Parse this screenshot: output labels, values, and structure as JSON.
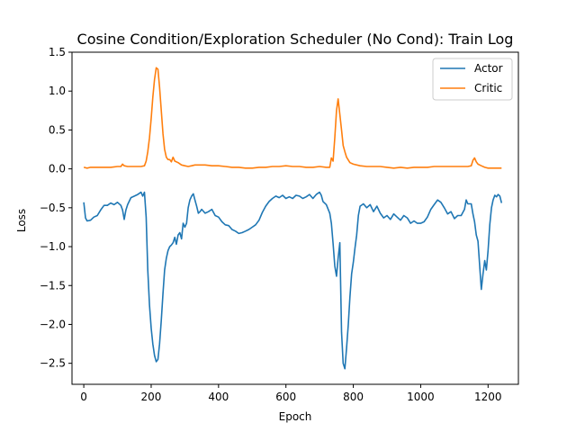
{
  "chart_data": {
    "type": "line",
    "title": "Cosine Condition/Exploration Scheduler (No Cond): Train Log",
    "xlabel": "Epoch",
    "ylabel": "Loss",
    "xlim": [
      -35,
      1290
    ],
    "ylim": [
      -2.77,
      1.5
    ],
    "xticks": [
      0,
      200,
      400,
      600,
      800,
      1000,
      1200
    ],
    "yticks": [
      -2.5,
      -2.0,
      -1.5,
      -1.0,
      -0.5,
      0.0,
      0.5,
      1.0,
      1.5
    ],
    "ytick_labels": [
      "−2.5",
      "−2.0",
      "−1.5",
      "−1.0",
      "−0.5",
      "0.0",
      "0.5",
      "1.0",
      "1.5"
    ],
    "grid": false,
    "legend_position": "top-right",
    "series": [
      {
        "name": "Actor",
        "color": "#1f77b4",
        "points": [
          [
            0,
            -0.43
          ],
          [
            5,
            -0.63
          ],
          [
            10,
            -0.67
          ],
          [
            20,
            -0.66
          ],
          [
            30,
            -0.62
          ],
          [
            40,
            -0.6
          ],
          [
            50,
            -0.53
          ],
          [
            60,
            -0.47
          ],
          [
            70,
            -0.47
          ],
          [
            80,
            -0.44
          ],
          [
            90,
            -0.46
          ],
          [
            100,
            -0.43
          ],
          [
            110,
            -0.47
          ],
          [
            115,
            -0.53
          ],
          [
            120,
            -0.65
          ],
          [
            125,
            -0.53
          ],
          [
            130,
            -0.46
          ],
          [
            140,
            -0.37
          ],
          [
            150,
            -0.35
          ],
          [
            160,
            -0.33
          ],
          [
            170,
            -0.3
          ],
          [
            175,
            -0.35
          ],
          [
            180,
            -0.3
          ],
          [
            185,
            -0.62
          ],
          [
            190,
            -1.3
          ],
          [
            195,
            -1.75
          ],
          [
            200,
            -2.05
          ],
          [
            205,
            -2.25
          ],
          [
            210,
            -2.4
          ],
          [
            215,
            -2.48
          ],
          [
            220,
            -2.45
          ],
          [
            225,
            -2.25
          ],
          [
            230,
            -1.95
          ],
          [
            235,
            -1.6
          ],
          [
            240,
            -1.3
          ],
          [
            245,
            -1.15
          ],
          [
            250,
            -1.05
          ],
          [
            255,
            -1.0
          ],
          [
            260,
            -0.98
          ],
          [
            265,
            -0.95
          ],
          [
            270,
            -0.88
          ],
          [
            275,
            -0.97
          ],
          [
            280,
            -0.85
          ],
          [
            285,
            -0.82
          ],
          [
            290,
            -0.9
          ],
          [
            295,
            -0.7
          ],
          [
            300,
            -0.75
          ],
          [
            305,
            -0.7
          ],
          [
            310,
            -0.5
          ],
          [
            315,
            -0.4
          ],
          [
            320,
            -0.35
          ],
          [
            325,
            -0.32
          ],
          [
            330,
            -0.4
          ],
          [
            335,
            -0.48
          ],
          [
            340,
            -0.57
          ],
          [
            345,
            -0.55
          ],
          [
            350,
            -0.52
          ],
          [
            360,
            -0.57
          ],
          [
            370,
            -0.55
          ],
          [
            380,
            -0.52
          ],
          [
            390,
            -0.6
          ],
          [
            400,
            -0.62
          ],
          [
            410,
            -0.68
          ],
          [
            420,
            -0.72
          ],
          [
            430,
            -0.73
          ],
          [
            440,
            -0.78
          ],
          [
            450,
            -0.8
          ],
          [
            460,
            -0.83
          ],
          [
            470,
            -0.82
          ],
          [
            480,
            -0.8
          ],
          [
            490,
            -0.78
          ],
          [
            500,
            -0.75
          ],
          [
            510,
            -0.72
          ],
          [
            520,
            -0.66
          ],
          [
            530,
            -0.56
          ],
          [
            540,
            -0.48
          ],
          [
            550,
            -0.42
          ],
          [
            560,
            -0.38
          ],
          [
            570,
            -0.35
          ],
          [
            580,
            -0.37
          ],
          [
            590,
            -0.34
          ],
          [
            600,
            -0.38
          ],
          [
            610,
            -0.36
          ],
          [
            620,
            -0.38
          ],
          [
            630,
            -0.34
          ],
          [
            640,
            -0.35
          ],
          [
            650,
            -0.38
          ],
          [
            660,
            -0.36
          ],
          [
            670,
            -0.33
          ],
          [
            680,
            -0.38
          ],
          [
            690,
            -0.33
          ],
          [
            700,
            -0.3
          ],
          [
            705,
            -0.34
          ],
          [
            710,
            -0.42
          ],
          [
            720,
            -0.46
          ],
          [
            730,
            -0.57
          ],
          [
            735,
            -0.7
          ],
          [
            740,
            -0.96
          ],
          [
            745,
            -1.25
          ],
          [
            750,
            -1.38
          ],
          [
            755,
            -1.15
          ],
          [
            760,
            -0.95
          ],
          [
            765,
            -2.1
          ],
          [
            770,
            -2.5
          ],
          [
            775,
            -2.57
          ],
          [
            780,
            -2.3
          ],
          [
            785,
            -2.0
          ],
          [
            790,
            -1.65
          ],
          [
            795,
            -1.35
          ],
          [
            800,
            -1.2
          ],
          [
            805,
            -1.02
          ],
          [
            810,
            -0.85
          ],
          [
            815,
            -0.6
          ],
          [
            820,
            -0.48
          ],
          [
            830,
            -0.45
          ],
          [
            840,
            -0.5
          ],
          [
            850,
            -0.46
          ],
          [
            860,
            -0.55
          ],
          [
            870,
            -0.48
          ],
          [
            880,
            -0.57
          ],
          [
            890,
            -0.63
          ],
          [
            900,
            -0.6
          ],
          [
            910,
            -0.65
          ],
          [
            920,
            -0.58
          ],
          [
            930,
            -0.62
          ],
          [
            940,
            -0.66
          ],
          [
            950,
            -0.6
          ],
          [
            960,
            -0.63
          ],
          [
            970,
            -0.7
          ],
          [
            980,
            -0.67
          ],
          [
            990,
            -0.7
          ],
          [
            1000,
            -0.7
          ],
          [
            1010,
            -0.68
          ],
          [
            1020,
            -0.62
          ],
          [
            1030,
            -0.52
          ],
          [
            1040,
            -0.46
          ],
          [
            1050,
            -0.4
          ],
          [
            1060,
            -0.43
          ],
          [
            1070,
            -0.5
          ],
          [
            1080,
            -0.58
          ],
          [
            1090,
            -0.55
          ],
          [
            1100,
            -0.64
          ],
          [
            1110,
            -0.6
          ],
          [
            1120,
            -0.6
          ],
          [
            1130,
            -0.52
          ],
          [
            1135,
            -0.4
          ],
          [
            1140,
            -0.45
          ],
          [
            1150,
            -0.45
          ],
          [
            1155,
            -0.58
          ],
          [
            1160,
            -0.68
          ],
          [
            1165,
            -0.85
          ],
          [
            1170,
            -0.93
          ],
          [
            1175,
            -1.25
          ],
          [
            1180,
            -1.55
          ],
          [
            1185,
            -1.35
          ],
          [
            1190,
            -1.18
          ],
          [
            1195,
            -1.3
          ],
          [
            1200,
            -1.05
          ],
          [
            1205,
            -0.72
          ],
          [
            1210,
            -0.5
          ],
          [
            1215,
            -0.4
          ],
          [
            1220,
            -0.34
          ],
          [
            1225,
            -0.36
          ],
          [
            1230,
            -0.33
          ],
          [
            1235,
            -0.35
          ],
          [
            1240,
            -0.44
          ]
        ]
      },
      {
        "name": "Critic",
        "color": "#ff7f0e",
        "points": [
          [
            0,
            0.02
          ],
          [
            10,
            0.01
          ],
          [
            20,
            0.02
          ],
          [
            40,
            0.02
          ],
          [
            60,
            0.02
          ],
          [
            80,
            0.02
          ],
          [
            100,
            0.03
          ],
          [
            110,
            0.03
          ],
          [
            115,
            0.06
          ],
          [
            120,
            0.04
          ],
          [
            130,
            0.03
          ],
          [
            150,
            0.03
          ],
          [
            170,
            0.03
          ],
          [
            180,
            0.04
          ],
          [
            185,
            0.1
          ],
          [
            190,
            0.22
          ],
          [
            195,
            0.4
          ],
          [
            200,
            0.65
          ],
          [
            205,
            0.92
          ],
          [
            210,
            1.15
          ],
          [
            215,
            1.3
          ],
          [
            220,
            1.28
          ],
          [
            225,
            1.05
          ],
          [
            230,
            0.75
          ],
          [
            235,
            0.45
          ],
          [
            240,
            0.25
          ],
          [
            245,
            0.15
          ],
          [
            250,
            0.12
          ],
          [
            255,
            0.12
          ],
          [
            260,
            0.09
          ],
          [
            265,
            0.15
          ],
          [
            270,
            0.1
          ],
          [
            280,
            0.08
          ],
          [
            290,
            0.05
          ],
          [
            300,
            0.04
          ],
          [
            310,
            0.03
          ],
          [
            320,
            0.04
          ],
          [
            330,
            0.05
          ],
          [
            340,
            0.05
          ],
          [
            350,
            0.05
          ],
          [
            360,
            0.05
          ],
          [
            380,
            0.04
          ],
          [
            400,
            0.04
          ],
          [
            420,
            0.03
          ],
          [
            440,
            0.02
          ],
          [
            460,
            0.02
          ],
          [
            480,
            0.01
          ],
          [
            500,
            0.01
          ],
          [
            520,
            0.02
          ],
          [
            540,
            0.02
          ],
          [
            560,
            0.03
          ],
          [
            580,
            0.03
          ],
          [
            600,
            0.04
          ],
          [
            620,
            0.03
          ],
          [
            640,
            0.03
          ],
          [
            660,
            0.02
          ],
          [
            680,
            0.02
          ],
          [
            700,
            0.03
          ],
          [
            720,
            0.02
          ],
          [
            730,
            0.02
          ],
          [
            735,
            0.14
          ],
          [
            740,
            0.1
          ],
          [
            745,
            0.4
          ],
          [
            750,
            0.75
          ],
          [
            755,
            0.9
          ],
          [
            760,
            0.7
          ],
          [
            765,
            0.5
          ],
          [
            770,
            0.3
          ],
          [
            775,
            0.22
          ],
          [
            780,
            0.15
          ],
          [
            790,
            0.08
          ],
          [
            800,
            0.06
          ],
          [
            820,
            0.04
          ],
          [
            840,
            0.03
          ],
          [
            860,
            0.03
          ],
          [
            880,
            0.03
          ],
          [
            900,
            0.02
          ],
          [
            920,
            0.01
          ],
          [
            940,
            0.02
          ],
          [
            960,
            0.01
          ],
          [
            980,
            0.02
          ],
          [
            1000,
            0.02
          ],
          [
            1020,
            0.02
          ],
          [
            1040,
            0.03
          ],
          [
            1060,
            0.03
          ],
          [
            1080,
            0.03
          ],
          [
            1100,
            0.03
          ],
          [
            1120,
            0.03
          ],
          [
            1140,
            0.03
          ],
          [
            1150,
            0.04
          ],
          [
            1155,
            0.11
          ],
          [
            1160,
            0.14
          ],
          [
            1165,
            0.09
          ],
          [
            1170,
            0.06
          ],
          [
            1180,
            0.04
          ],
          [
            1190,
            0.02
          ],
          [
            1200,
            0.01
          ],
          [
            1220,
            0.01
          ],
          [
            1240,
            0.01
          ]
        ]
      }
    ]
  }
}
